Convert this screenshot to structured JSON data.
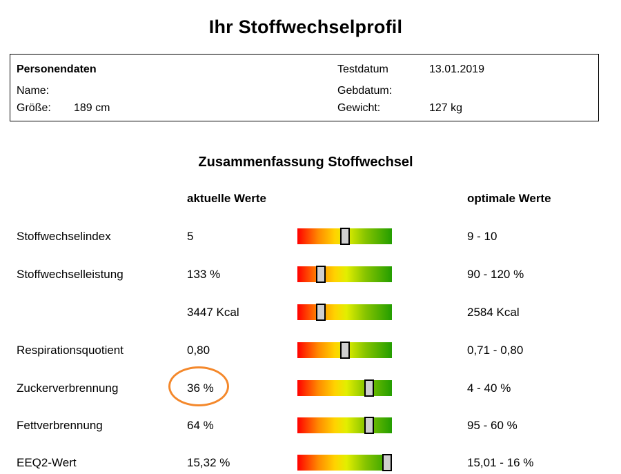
{
  "page_title": "Ihr Stoffwechselprofil",
  "person": {
    "section_label": "Personendaten",
    "name_label": "Name:",
    "name_value": "",
    "height_label": "Größe:",
    "height_value": "189 cm",
    "test_date_label": "Testdatum",
    "test_date_value": "13.01.2019",
    "birth_date_label": "Gebdatum:",
    "birth_date_value": "",
    "weight_label": "Gewicht:",
    "weight_value": "127 kg"
  },
  "summary": {
    "title": "Zusammenfassung Stoffwechsel",
    "current_header": "aktuelle Werte",
    "optimal_header": "optimale Werte",
    "rows": [
      {
        "label": "Stoffwechselindex",
        "current": "5",
        "optimal": "9 - 10",
        "marker_fraction": 0.5
      },
      {
        "label": "Stoffwechselleistung",
        "current": "133 %",
        "optimal": "90 - 120 %",
        "marker_fraction": 0.25
      },
      {
        "label": "",
        "current": "3447 Kcal",
        "optimal": "2584 Kcal",
        "marker_fraction": 0.25
      },
      {
        "label": "Respirationsquotient",
        "current": "0,80",
        "optimal": "0,71 - 0,80",
        "marker_fraction": 0.5
      },
      {
        "label": "Zuckerverbrennung",
        "current": "36 %",
        "optimal": "4 - 40 %",
        "marker_fraction": 0.76
      },
      {
        "label": "Fettverbrennung",
        "current": "64 %",
        "optimal": "95 - 60 %",
        "marker_fraction": 0.76
      },
      {
        "label": "EEQ2-Wert",
        "current": "15,32 %",
        "optimal": "15,01 - 16 %",
        "marker_fraction": 0.95
      }
    ]
  },
  "colors": {
    "highlight_circle": "#f4882b",
    "bar_low": "#ff0000",
    "bar_mid": "#ffd400",
    "bar_high": "#239d00"
  }
}
